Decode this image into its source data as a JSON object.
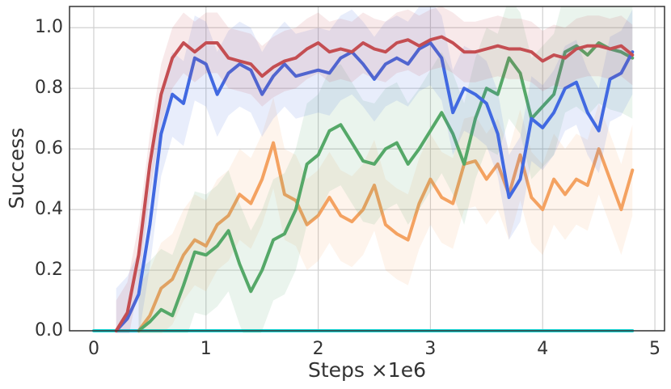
{
  "chart_data": {
    "type": "line",
    "xlabel": "Steps ×1e6",
    "ylabel": "Success",
    "x": [
      0,
      0.1,
      0.2,
      0.3,
      0.4,
      0.5,
      0.6,
      0.7,
      0.8,
      0.9,
      1.0,
      1.1,
      1.2,
      1.3,
      1.4,
      1.5,
      1.6,
      1.7,
      1.8,
      1.9,
      2.0,
      2.1,
      2.2,
      2.3,
      2.4,
      2.5,
      2.6,
      2.7,
      2.8,
      2.9,
      3.0,
      3.1,
      3.2,
      3.3,
      3.4,
      3.5,
      3.6,
      3.7,
      3.8,
      3.9,
      4.0,
      4.1,
      4.2,
      4.3,
      4.4,
      4.5,
      4.6,
      4.7,
      4.8
    ],
    "xlim": [
      -0.216,
      5.086
    ],
    "xticks": [
      0,
      1,
      2,
      3,
      4,
      5
    ],
    "ylim": [
      0,
      1.07
    ],
    "yticks": [
      {
        "value": 0,
        "label": "0.0"
      },
      0.2,
      0.4,
      0.6,
      0.8,
      {
        "value": 1,
        "label": "1.0"
      }
    ],
    "grid": true,
    "series": [
      {
        "color": "#17d9d9",
        "band": 0,
        "values": [
          0,
          0,
          0,
          0,
          0,
          0,
          0,
          0,
          0,
          0,
          0,
          0,
          0,
          0,
          0,
          0,
          0,
          0,
          0,
          0,
          0,
          0,
          0,
          0,
          0,
          0,
          0,
          0,
          0,
          0,
          0,
          0,
          0,
          0,
          0,
          0,
          0,
          0,
          0,
          0,
          0,
          0,
          0,
          0,
          0,
          0,
          0,
          0,
          0
        ]
      },
      {
        "color": "#f4a261",
        "band": 0.15,
        "values": [
          null,
          null,
          null,
          null,
          0,
          0.05,
          0.14,
          0.17,
          0.25,
          0.3,
          0.28,
          0.35,
          0.38,
          0.45,
          0.42,
          0.5,
          0.62,
          0.45,
          0.43,
          0.35,
          0.38,
          0.44,
          0.38,
          0.36,
          0.4,
          0.48,
          0.35,
          0.32,
          0.3,
          0.42,
          0.5,
          0.44,
          0.42,
          0.55,
          0.56,
          0.5,
          0.55,
          0.45,
          0.58,
          0.44,
          0.4,
          0.5,
          0.45,
          0.5,
          0.48,
          0.6,
          0.5,
          0.4,
          0.53
        ]
      },
      {
        "color": "#55a868",
        "band": 0.2,
        "values": [
          null,
          null,
          null,
          null,
          0,
          0.03,
          0.07,
          0.05,
          0.15,
          0.26,
          0.25,
          0.28,
          0.33,
          0.22,
          0.13,
          0.2,
          0.3,
          0.32,
          0.4,
          0.55,
          0.58,
          0.66,
          0.68,
          0.62,
          0.56,
          0.55,
          0.6,
          0.62,
          0.55,
          0.6,
          0.66,
          0.72,
          0.65,
          0.55,
          0.7,
          0.8,
          0.78,
          0.9,
          0.85,
          0.7,
          0.74,
          0.78,
          0.92,
          0.94,
          0.91,
          0.95,
          0.93,
          0.92,
          0.9
        ]
      },
      {
        "color": "#4169e1",
        "band": 0.14,
        "values": [
          null,
          null,
          0,
          0.04,
          0.12,
          0.35,
          0.65,
          0.78,
          0.75,
          0.9,
          0.88,
          0.78,
          0.85,
          0.88,
          0.86,
          0.78,
          0.84,
          0.88,
          0.84,
          0.85,
          0.86,
          0.85,
          0.9,
          0.92,
          0.88,
          0.83,
          0.88,
          0.9,
          0.88,
          0.93,
          0.95,
          0.9,
          0.72,
          0.8,
          0.78,
          0.75,
          0.65,
          0.44,
          0.5,
          0.7,
          0.67,
          0.72,
          0.8,
          0.82,
          0.72,
          0.66,
          0.83,
          0.85,
          0.92
        ]
      },
      {
        "color": "#c44e52",
        "band": 0.1,
        "values": [
          null,
          null,
          0,
          0.06,
          0.25,
          0.55,
          0.78,
          0.9,
          0.95,
          0.92,
          0.95,
          0.95,
          0.9,
          0.89,
          0.88,
          0.84,
          0.87,
          0.89,
          0.9,
          0.93,
          0.95,
          0.92,
          0.93,
          0.92,
          0.95,
          0.93,
          0.92,
          0.95,
          0.96,
          0.94,
          0.96,
          0.97,
          0.95,
          0.92,
          0.92,
          0.93,
          0.94,
          0.93,
          0.93,
          0.92,
          0.89,
          0.91,
          0.9,
          0.93,
          0.94,
          0.94,
          0.93,
          0.94,
          0.91
        ]
      }
    ]
  }
}
